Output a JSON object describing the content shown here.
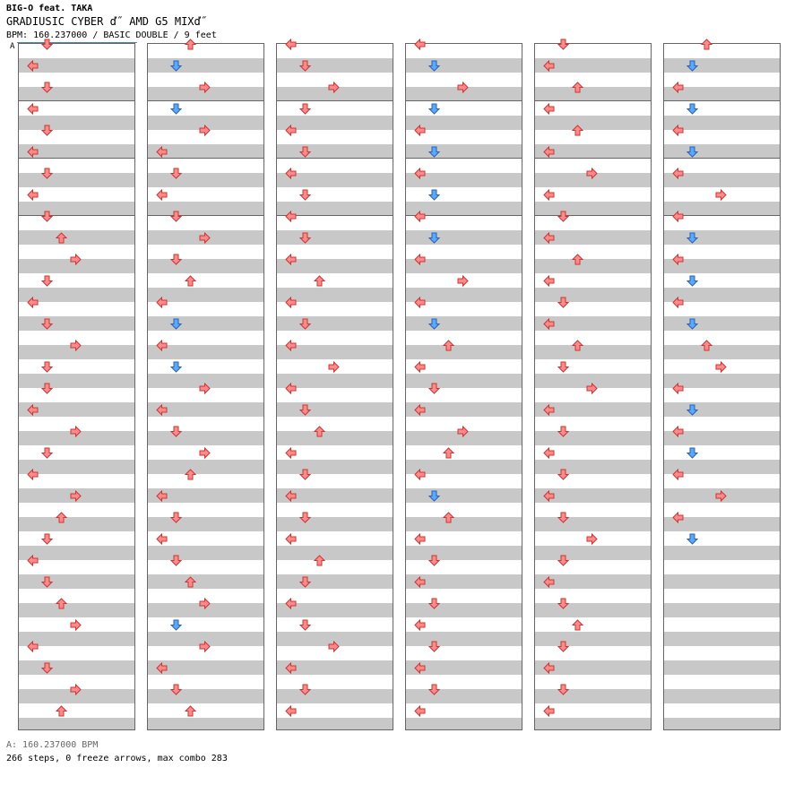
{
  "header": {
    "artist": "BIG-O feat. TAKA",
    "title": "GRADIUSIC CYBER ď˝ AMD G5 MIXď˝",
    "subtitle": "BPM: 160.237000 / BASIC DOUBLE / 9 feet",
    "bpm_marker": "A"
  },
  "footer": {
    "bpm_note": "A: 160.237000 BPM",
    "stats": "266 steps, 0 freeze arrows, max combo 283"
  },
  "colors": {
    "red_arrow": "#ff8a8a",
    "blue_arrow": "#5aa8ff",
    "stripe": "#c8c8c8",
    "border": "#666666"
  },
  "chart": {
    "type": "step-chart",
    "columns": 6,
    "measures_per_column": 4,
    "lanes": [
      "left",
      "down",
      "up",
      "right",
      "left",
      "down",
      "up",
      "right"
    ],
    "notes": [
      [
        [
          1,
          1
        ],
        [
          0,
          2
        ],
        [
          1,
          3
        ],
        [
          0,
          4
        ],
        [
          1,
          5
        ],
        [
          0,
          6
        ],
        [
          1,
          7
        ],
        [
          0,
          8
        ],
        [
          1,
          9
        ],
        [
          2,
          10
        ],
        [
          3,
          11
        ],
        [
          1,
          12
        ],
        [
          0,
          13
        ],
        [
          1,
          14
        ],
        [
          3,
          15
        ],
        [
          1,
          16
        ],
        [
          1,
          17
        ],
        [
          0,
          18
        ],
        [
          3,
          19
        ],
        [
          1,
          20
        ],
        [
          0,
          21
        ],
        [
          3,
          22
        ],
        [
          2,
          23
        ],
        [
          1,
          24
        ],
        [
          0,
          25
        ],
        [
          1,
          26
        ],
        [
          2,
          27
        ],
        [
          3,
          28
        ],
        [
          0,
          29
        ],
        [
          1,
          30
        ],
        [
          3,
          31
        ],
        [
          2,
          32
        ]
      ],
      [
        [
          2,
          1
        ],
        [
          1,
          2
        ],
        [
          3,
          3
        ],
        [
          1,
          4
        ],
        [
          3,
          5
        ],
        [
          0,
          6
        ],
        [
          1,
          7
        ],
        [
          0,
          8
        ],
        [
          1,
          9
        ],
        [
          3,
          10
        ],
        [
          1,
          11
        ],
        [
          2,
          12
        ],
        [
          0,
          13
        ],
        [
          1,
          14
        ],
        [
          0,
          15
        ],
        [
          1,
          16
        ],
        [
          3,
          17
        ],
        [
          0,
          18
        ],
        [
          1,
          19
        ],
        [
          3,
          20
        ],
        [
          2,
          21
        ],
        [
          0,
          22
        ],
        [
          1,
          23
        ],
        [
          0,
          24
        ],
        [
          1,
          25
        ],
        [
          2,
          26
        ],
        [
          3,
          27
        ],
        [
          1,
          28
        ],
        [
          3,
          29
        ],
        [
          0,
          30
        ],
        [
          1,
          31
        ],
        [
          2,
          32
        ]
      ],
      [
        [
          0,
          1
        ],
        [
          1,
          2
        ],
        [
          3,
          3
        ],
        [
          1,
          4
        ],
        [
          0,
          5
        ],
        [
          1,
          6
        ],
        [
          0,
          7
        ],
        [
          1,
          8
        ],
        [
          0,
          9
        ],
        [
          1,
          10
        ],
        [
          0,
          11
        ],
        [
          2,
          12
        ],
        [
          0,
          13
        ],
        [
          1,
          14
        ],
        [
          0,
          15
        ],
        [
          3,
          16
        ],
        [
          0,
          17
        ],
        [
          1,
          18
        ],
        [
          2,
          19
        ],
        [
          0,
          20
        ],
        [
          1,
          21
        ],
        [
          0,
          22
        ],
        [
          1,
          23
        ],
        [
          0,
          24
        ],
        [
          2,
          25
        ],
        [
          1,
          26
        ],
        [
          0,
          27
        ],
        [
          1,
          28
        ],
        [
          3,
          29
        ],
        [
          0,
          30
        ],
        [
          1,
          31
        ],
        [
          0,
          32
        ]
      ],
      [
        [
          0,
          1
        ],
        [
          1,
          2
        ],
        [
          3,
          3
        ],
        [
          1,
          4
        ],
        [
          0,
          5
        ],
        [
          1,
          6
        ],
        [
          0,
          7
        ],
        [
          1,
          8
        ],
        [
          0,
          9
        ],
        [
          1,
          10
        ],
        [
          0,
          11
        ],
        [
          3,
          12
        ],
        [
          0,
          13
        ],
        [
          1,
          14
        ],
        [
          2,
          15
        ],
        [
          0,
          16
        ],
        [
          1,
          17
        ],
        [
          0,
          18
        ],
        [
          3,
          19
        ],
        [
          2,
          20
        ],
        [
          0,
          21
        ],
        [
          1,
          22
        ],
        [
          2,
          23
        ],
        [
          0,
          24
        ],
        [
          1,
          25
        ],
        [
          0,
          26
        ],
        [
          1,
          27
        ],
        [
          0,
          28
        ],
        [
          1,
          29
        ],
        [
          0,
          30
        ],
        [
          1,
          31
        ],
        [
          0,
          32
        ]
      ],
      [
        [
          1,
          1
        ],
        [
          0,
          2
        ],
        [
          2,
          3
        ],
        [
          0,
          4
        ],
        [
          2,
          5
        ],
        [
          0,
          6
        ],
        [
          3,
          7
        ],
        [
          0,
          8
        ],
        [
          1,
          9
        ],
        [
          0,
          10
        ],
        [
          2,
          11
        ],
        [
          0,
          12
        ],
        [
          1,
          13
        ],
        [
          0,
          14
        ],
        [
          2,
          15
        ],
        [
          1,
          16
        ],
        [
          3,
          17
        ],
        [
          0,
          18
        ],
        [
          1,
          19
        ],
        [
          0,
          20
        ],
        [
          1,
          21
        ],
        [
          0,
          22
        ],
        [
          1,
          23
        ],
        [
          3,
          24
        ],
        [
          1,
          25
        ],
        [
          0,
          26
        ],
        [
          1,
          27
        ],
        [
          2,
          28
        ],
        [
          1,
          29
        ],
        [
          0,
          30
        ],
        [
          1,
          31
        ],
        [
          0,
          32
        ]
      ],
      [
        [
          2,
          1
        ],
        [
          1,
          2
        ],
        [
          0,
          3
        ],
        [
          1,
          4
        ],
        [
          0,
          5
        ],
        [
          1,
          6
        ],
        [
          0,
          7
        ],
        [
          3,
          8
        ],
        [
          0,
          9
        ],
        [
          1,
          10
        ],
        [
          0,
          11
        ],
        [
          1,
          12
        ],
        [
          0,
          13
        ],
        [
          1,
          14
        ],
        [
          2,
          15
        ],
        [
          3,
          16
        ],
        [
          0,
          17
        ],
        [
          1,
          18
        ],
        [
          0,
          19
        ],
        [
          1,
          20
        ],
        [
          0,
          21
        ],
        [
          3,
          22
        ],
        [
          0,
          23
        ],
        [
          1,
          24
        ]
      ]
    ]
  }
}
